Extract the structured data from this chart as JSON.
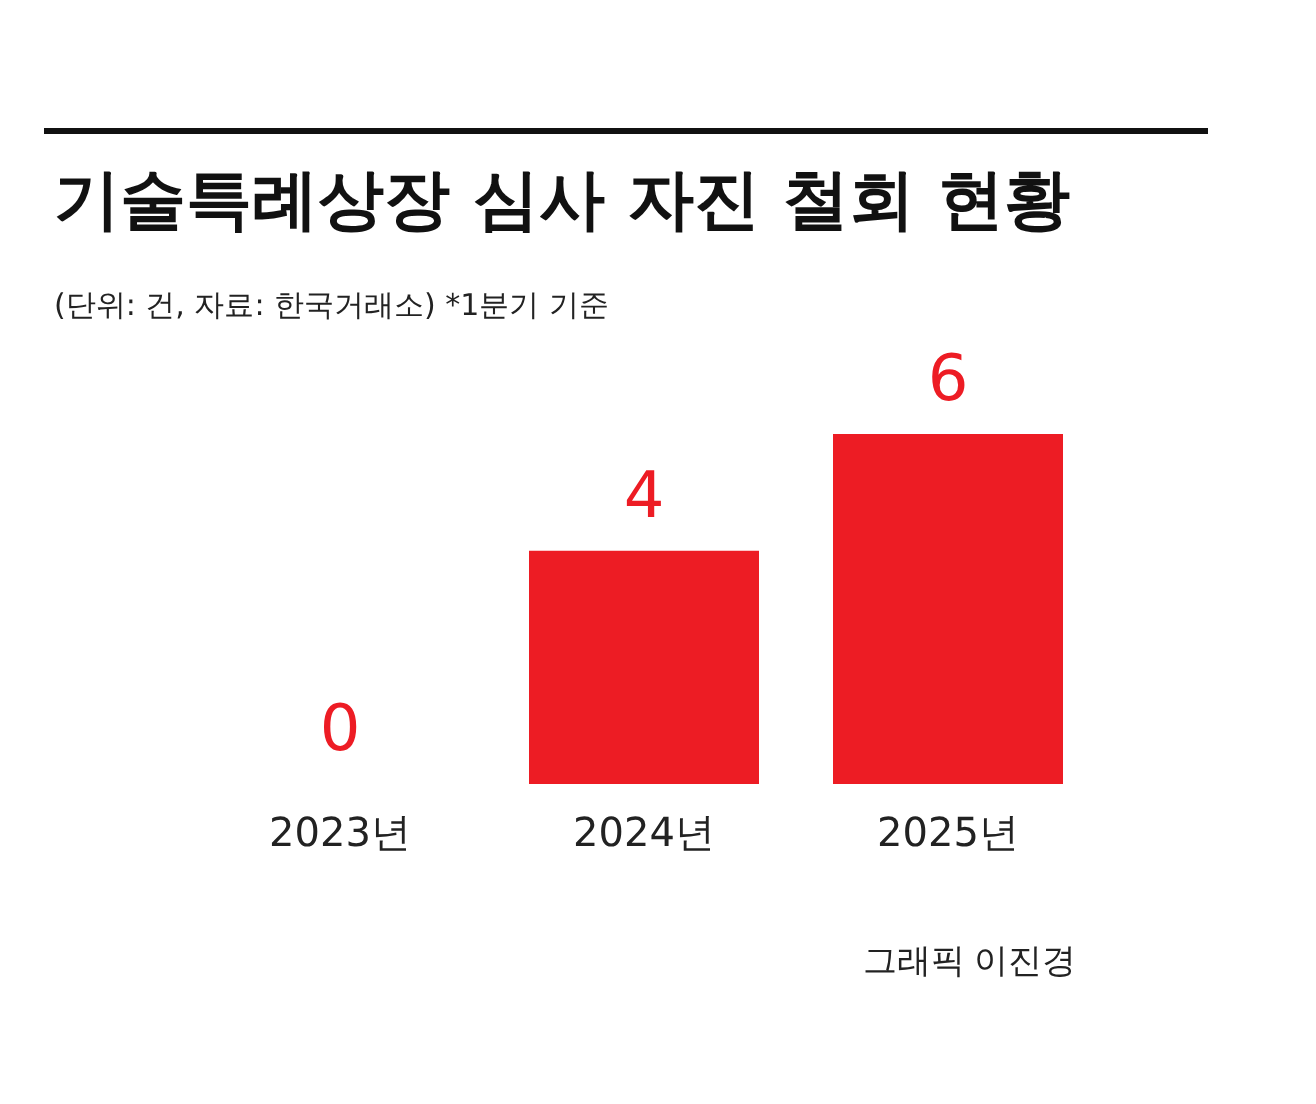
{
  "chart_data": {
    "type": "bar",
    "title": "기술특례상장 심사 자진 철회 현황",
    "subtitle": "(단위: 건, 자료: 한국거래소) *1분기 기준",
    "categories": [
      "2023년",
      "2024년",
      "2025년"
    ],
    "values": [
      0,
      4,
      6
    ],
    "color": "#ed1c24",
    "data_labels": true,
    "annotations": [
      "그래픽 이진경"
    ]
  }
}
